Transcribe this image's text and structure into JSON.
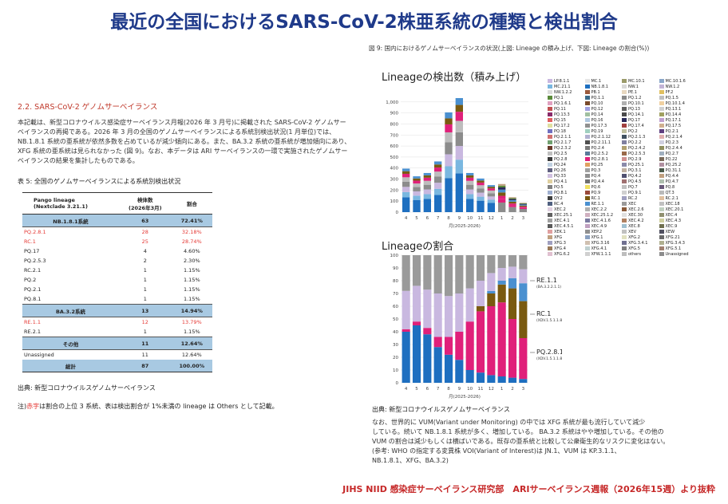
{
  "page_title": "最近の全国におけるSARS-CoV-2株亜系統の種類と検出割合",
  "left": {
    "section_heading": "2.2. SARS-CoV-2 ゲノムサーベイランス",
    "paragraph": "本記載は、新型コロナウイルス感染症サーベイランス月報(2026 年 3 月号)に掲載された SARS-CoV-2 ゲノムサーベイランスの再掲である。2026 年 3 月の全国のゲノムサーベイランスによる系統別検出状況(1 月単位)では、NB.1.8.1 系統の亜系統が依然多数を占めているが減少傾向にある。また、BA.3.2 系統の亜系統が増加傾向にあり、XFG 系統の亜系統は見られなかった (図 9)。なお、本データは ARI サーベイランスの一環で実施されたゲノムサーベイランスの結果を集計したものである。",
    "table_caption": "表 5: 全国のゲノムサーベイランスによる系統別検出状況",
    "table": {
      "headers": [
        "Pango lineage\n(Nextclade 3.21.1)",
        "検体数\n(2026年3月)",
        "割合"
      ],
      "rows": [
        {
          "type": "group",
          "cells": [
            "NB.1.8.1系統",
            "63",
            "72.41%"
          ]
        },
        {
          "type": "red",
          "cells": [
            "PQ.2.8.1",
            "28",
            "32.18%"
          ]
        },
        {
          "type": "red",
          "cells": [
            "RC.1",
            "25",
            "28.74%"
          ]
        },
        {
          "type": "normal",
          "cells": [
            "PQ.17",
            "4",
            "4.60%"
          ]
        },
        {
          "type": "normal",
          "cells": [
            "PQ.2.5.3",
            "2",
            "2.30%"
          ]
        },
        {
          "type": "normal",
          "cells": [
            "RC.2.1",
            "1",
            "1.15%"
          ]
        },
        {
          "type": "normal",
          "cells": [
            "PQ.2",
            "1",
            "1.15%"
          ]
        },
        {
          "type": "normal",
          "cells": [
            "PQ.2.1",
            "1",
            "1.15%"
          ]
        },
        {
          "type": "normal",
          "cells": [
            "PQ.8.1",
            "1",
            "1.15%"
          ]
        },
        {
          "type": "group",
          "cells": [
            "BA.3.2系統",
            "13",
            "14.94%"
          ]
        },
        {
          "type": "red",
          "cells": [
            "RE.1.1",
            "12",
            "13.79%"
          ]
        },
        {
          "type": "normal",
          "cells": [
            "RE.2.1",
            "1",
            "1.15%"
          ]
        },
        {
          "type": "group",
          "cells": [
            "その他",
            "11",
            "12.64%"
          ]
        },
        {
          "type": "normal",
          "cells": [
            "Unassigned",
            "11",
            "12.64%"
          ]
        },
        {
          "type": "total",
          "cells": [
            "総計",
            "87",
            "100.00%"
          ]
        }
      ]
    },
    "source": "出典: 新型コロナウイルスゲノムサーベイランス",
    "note_prefix": "注)",
    "note_red": "赤字",
    "note_rest": "は割合の上位 3 系統、表は検出割合が 1%未満の lineage は Others として記載。"
  },
  "right": {
    "figure_caption": "図 9: 国内におけるゲノムサーベイランスの状況(上図: Lineage の積み上げ、下図: Lineage の割合(%))",
    "source": "出典: 新型コロナウイルスゲノムサーベイランス",
    "bottom_text": [
      "なお、世界的に VUM(Variant under Monitoring) の中では XFG 系統が最も流行していて減少",
      "している。続いて NB.1.8.1 系統が多く、増加している。 BA.3.2 系統はやや増加している。その他の",
      "VUM の割合は減少もしくは横ばいである。既存の亜系統と比較して公衆衛生的なリスクに変化はない。",
      "(参考: WHO の指定する変異株 VOI(Variant of Interest)は JN.1、VUM は KP.3.1.1、",
      "NB.1.8.1、XFG、BA.3.2)"
    ]
  },
  "chart_data": [
    {
      "type": "bar",
      "title": "Lineageの検出数（積み上げ）",
      "xlabel": "月(2025-2026)",
      "ylabel": "",
      "categories": [
        "4",
        "5",
        "6",
        "7",
        "8",
        "9",
        "10",
        "11",
        "12",
        "1",
        "2",
        "3"
      ],
      "values": [
        395,
        325,
        355,
        460,
        905,
        1035,
        355,
        305,
        245,
        255,
        135,
        85
      ],
      "ylim": [
        0,
        1100
      ],
      "yticks": [
        0,
        100,
        200,
        300,
        400,
        500,
        600,
        700,
        800,
        900,
        1000
      ],
      "stacked": true,
      "grid": true
    },
    {
      "type": "bar",
      "title": "Lineageの割合",
      "xlabel": "月(2025-2026)",
      "ylabel": "",
      "categories": [
        "4",
        "5",
        "6",
        "7",
        "8",
        "9",
        "10",
        "11",
        "12",
        "1",
        "2",
        "3"
      ],
      "ylim": [
        0,
        100
      ],
      "yticks": [
        0,
        10,
        20,
        30,
        40,
        50,
        60,
        70,
        80,
        90,
        100
      ],
      "stacked": true,
      "annotations": [
        {
          "label": "RE.1.1",
          "sub": "(BA.3.2.2.1.1)"
        },
        {
          "label": "RC.1",
          "sub": "(XDV.1.5.1.1.8.1.2.8.1.1)"
        },
        {
          "label": "PQ.2.8.1",
          "sub": "(XDV.1.5.1.1.8.1.2.8.1)"
        }
      ]
    }
  ],
  "legend": [
    {
      "label": "LP.8.1.1",
      "color": "#c9b8e0"
    },
    {
      "label": "MC.1",
      "color": "#e6e6e6"
    },
    {
      "label": "MC.10.1",
      "color": "#9a9a6a"
    },
    {
      "label": "MC.10.1.6",
      "color": "#8aa7c9"
    },
    {
      "label": "MC.21.1",
      "color": "#7ab7e0"
    },
    {
      "label": "NB.1.8.1",
      "color": "#1e6fc0"
    },
    {
      "label": "NW.1",
      "color": "#d8d8d8"
    },
    {
      "label": "NW.1.2",
      "color": "#c2b4d6"
    },
    {
      "label": "NW.1.2.2",
      "color": "#dcdcdc"
    },
    {
      "label": "PB.1",
      "color": "#9b5a3c"
    },
    {
      "label": "PE.1",
      "color": "#e8d8c0"
    },
    {
      "label": "PF.2",
      "color": "#e0c060"
    },
    {
      "label": "PQ.1",
      "color": "#5a8a3a"
    },
    {
      "label": "PQ.1.1",
      "color": "#3a6a8a"
    },
    {
      "label": "PQ.1.2",
      "color": "#8a8a8a"
    },
    {
      "label": "PQ.1.5",
      "color": "#c0c0c0"
    },
    {
      "label": "PQ.1.6.1",
      "color": "#e0a0c0"
    },
    {
      "label": "PQ.10",
      "color": "#7a4a2a"
    },
    {
      "label": "PQ.10.1",
      "color": "#b0b0b0"
    },
    {
      "label": "PQ.10.1.4",
      "color": "#f0d0a0"
    },
    {
      "label": "PQ.11",
      "color": "#c05050"
    },
    {
      "label": "PQ.12",
      "color": "#a0a0e0"
    },
    {
      "label": "PQ.13",
      "color": "#606060"
    },
    {
      "label": "PQ.13.1",
      "color": "#d0d0d0"
    },
    {
      "label": "PQ.13.3",
      "color": "#8a2a6a"
    },
    {
      "label": "PQ.14",
      "color": "#a0c0a0"
    },
    {
      "label": "PQ.14.1",
      "color": "#4a4a4a"
    },
    {
      "label": "PQ.14.4",
      "color": "#a0a060"
    },
    {
      "label": "PQ.15",
      "color": "#e06060"
    },
    {
      "label": "PQ.16",
      "color": "#b0c8e0"
    },
    {
      "label": "PQ.17",
      "color": "#2a2a5a"
    },
    {
      "label": "PQ.17.1",
      "color": "#c0a0d0"
    },
    {
      "label": "PQ.17.2",
      "color": "#e0e0a0"
    },
    {
      "label": "PQ.17.3",
      "color": "#909090"
    },
    {
      "label": "PQ.17.4",
      "color": "#a04040"
    },
    {
      "label": "PQ.17.5",
      "color": "#d0b090"
    },
    {
      "label": "PQ.18",
      "color": "#7070c0"
    },
    {
      "label": "PQ.19",
      "color": "#a0d0c0"
    },
    {
      "label": "PQ.2",
      "color": "#c0c0a0"
    },
    {
      "label": "PQ.2.1",
      "color": "#604080"
    },
    {
      "label": "PQ.2.1.1",
      "color": "#d07070"
    },
    {
      "label": "PQ.2.1.12",
      "color": "#b0b0d0"
    },
    {
      "label": "PQ.2.1.3",
      "color": "#405060"
    },
    {
      "label": "PQ.2.1.4",
      "color": "#e0b0b0"
    },
    {
      "label": "PQ.2.1.7",
      "color": "#70a070"
    },
    {
      "label": "PQ.2.11.1",
      "color": "#505050"
    },
    {
      "label": "PQ.2.2",
      "color": "#8080a0"
    },
    {
      "label": "PQ.2.3",
      "color": "#d0d0e0"
    },
    {
      "label": "PQ.2.3.2",
      "color": "#6a3a2a"
    },
    {
      "label": "PQ.2.4",
      "color": "#7a7a7a"
    },
    {
      "label": "PQ.2.4.2",
      "color": "#b0a070"
    },
    {
      "label": "PQ.2.4.4",
      "color": "#909060"
    },
    {
      "label": "PQ.2.5",
      "color": "#c0c0c0"
    },
    {
      "label": "PQ.2.5.2",
      "color": "#5a7a9a"
    },
    {
      "label": "PQ.2.5.3",
      "color": "#9a6a4a"
    },
    {
      "label": "PQ.2.7",
      "color": "#a0b0c0"
    },
    {
      "label": "PQ.2.8",
      "color": "#3a3a3a"
    },
    {
      "label": "PQ.2.8.1",
      "color": "#e0207a"
    },
    {
      "label": "PQ.2.9",
      "color": "#d09090"
    },
    {
      "label": "PQ.22",
      "color": "#7a6a5a"
    },
    {
      "label": "PQ.24",
      "color": "#c0d0e0"
    },
    {
      "label": "PQ.25",
      "color": "#e0a060"
    },
    {
      "label": "PQ.25.1",
      "color": "#8a8aaa"
    },
    {
      "label": "PQ.25.2",
      "color": "#b090a0"
    },
    {
      "label": "PQ.26",
      "color": "#606080"
    },
    {
      "label": "PQ.3",
      "color": "#a0a0a0"
    },
    {
      "label": "PQ.3.1",
      "color": "#c0b0a0"
    },
    {
      "label": "PQ.31.1",
      "color": "#4a5a4a"
    },
    {
      "label": "PQ.33",
      "color": "#d0c0e0"
    },
    {
      "label": "PQ.4",
      "color": "#909090"
    },
    {
      "label": "PQ.4.2",
      "color": "#505070"
    },
    {
      "label": "PQ.4.4",
      "color": "#c0a080"
    },
    {
      "label": "PQ.4.1",
      "color": "#e0d0a0"
    },
    {
      "label": "PQ.4.4",
      "color": "#707070"
    },
    {
      "label": "PQ.4.5",
      "color": "#a07070"
    },
    {
      "label": "PQ.4.7",
      "color": "#b0c0b0"
    },
    {
      "label": "PQ.5",
      "color": "#808080"
    },
    {
      "label": "PQ.6",
      "color": "#f0e060"
    },
    {
      "label": "PQ.7",
      "color": "#c0c0c0"
    },
    {
      "label": "PQ.8",
      "color": "#6a5a7a"
    },
    {
      "label": "PQ.8.1",
      "color": "#a0b0d0"
    },
    {
      "label": "PQ.9",
      "color": "#9a4a3a"
    },
    {
      "label": "PQ.9.1",
      "color": "#d0d0d0"
    },
    {
      "label": "QT.3",
      "color": "#bababa"
    },
    {
      "label": "QY.2",
      "color": "#404040"
    },
    {
      "label": "RC.1",
      "color": "#7a5a10"
    },
    {
      "label": "RC.2",
      "color": "#a0a0c0"
    },
    {
      "label": "RC.2.1",
      "color": "#e0c0a0"
    },
    {
      "label": "RC.4",
      "color": "#506080"
    },
    {
      "label": "RE.1.1",
      "color": "#4a90d0"
    },
    {
      "label": "XEC",
      "color": "#9a9a9a"
    },
    {
      "label": "XEC.18",
      "color": "#c0c0c0"
    },
    {
      "label": "XEC.2",
      "color": "#e0d0e0"
    },
    {
      "label": "XEC.2.2",
      "color": "#b0b0b0"
    },
    {
      "label": "XEC.2.6",
      "color": "#8a5a3a"
    },
    {
      "label": "XEC.20.1",
      "color": "#c0d0c0"
    },
    {
      "label": "XEC.25.1",
      "color": "#606060"
    },
    {
      "label": "XEC.25.1.2",
      "color": "#d0b0c0"
    },
    {
      "label": "XEC.30",
      "color": "#e0e0e0"
    },
    {
      "label": "XEC.4",
      "color": "#909070"
    },
    {
      "label": "XEC.4.1",
      "color": "#a0a0a0"
    },
    {
      "label": "XEC.4.1.6",
      "color": "#7a7aa0"
    },
    {
      "label": "XEC.4.2",
      "color": "#b08060"
    },
    {
      "label": "XEC.4.3",
      "color": "#d0d0a0"
    },
    {
      "label": "XEC.4.5.1",
      "color": "#5a5a5a"
    },
    {
      "label": "XEC.4.9",
      "color": "#c0a0c0"
    },
    {
      "label": "XEC.8",
      "color": "#a0c0d0"
    },
    {
      "label": "XEC.9",
      "color": "#707050"
    },
    {
      "label": "XEK.1",
      "color": "#e0a0a0"
    },
    {
      "label": "XEP.2",
      "color": "#909090"
    },
    {
      "label": "XEV",
      "color": "#c0c0c0"
    },
    {
      "label": "XEW",
      "color": "#505060"
    },
    {
      "label": "XFG",
      "color": "#c0a080"
    },
    {
      "label": "XFG.1",
      "color": "#8aa0c0"
    },
    {
      "label": "XFG.2",
      "color": "#e0e0c0"
    },
    {
      "label": "XFG.21",
      "color": "#6a6a6a"
    },
    {
      "label": "XFG.3",
      "color": "#a0a0c0"
    },
    {
      "label": "XFG.3.16",
      "color": "#d0c0b0"
    },
    {
      "label": "XFG.3.4.1",
      "color": "#707090"
    },
    {
      "label": "XFG.3.4.3",
      "color": "#b0b090"
    },
    {
      "label": "XFG.4",
      "color": "#9a7a5a"
    },
    {
      "label": "XFG.4.1",
      "color": "#c0d0d0"
    },
    {
      "label": "XFG.5",
      "color": "#808080"
    },
    {
      "label": "XFG.5.1",
      "color": "#a08070"
    },
    {
      "label": "XFG.6.2",
      "color": "#e0c0d0"
    },
    {
      "label": "XFW.1.1.1",
      "color": "#d0d0d0"
    },
    {
      "label": "others",
      "color": "#bdbdbd"
    },
    {
      "label": "Unassigned",
      "color": "#8c8c8c"
    }
  ],
  "footer": "JIHS NIID 感染症サーベイランス研究部　ARIサーベイランス週報（2026年15週）より抜粋"
}
